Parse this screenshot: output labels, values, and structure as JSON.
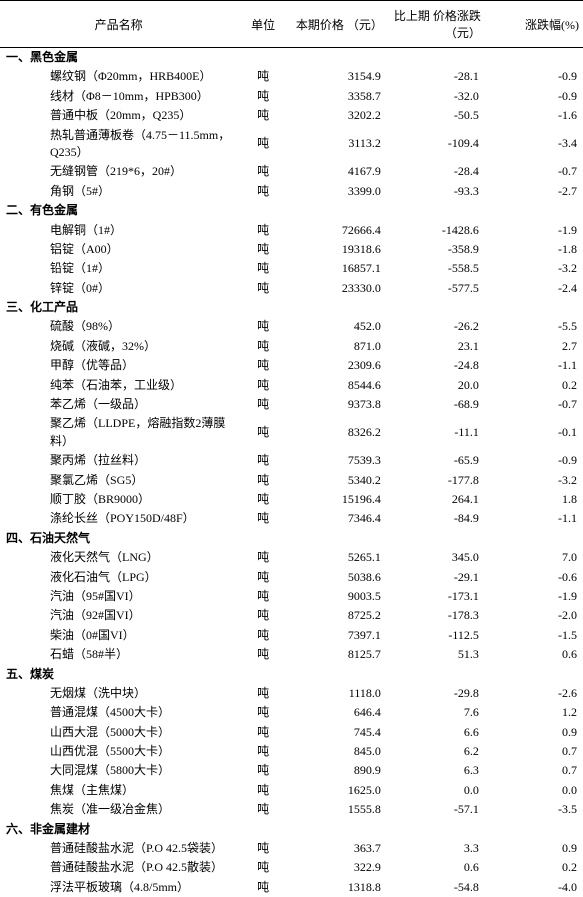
{
  "headers": {
    "name": "产品名称",
    "unit": "单位",
    "price": "本期价格\n（元）",
    "change": "比上期\n价格涨跌\n（元）",
    "pct": "涨跌幅(%)"
  },
  "sections": [
    {
      "title": "一、黑色金属",
      "rows": [
        {
          "name": "螺纹钢（Φ20mm，HRB400E）",
          "unit": "吨",
          "price": "3154.9",
          "change": "-28.1",
          "pct": "-0.9"
        },
        {
          "name": "线材（Φ8－10mm，HPB300）",
          "unit": "吨",
          "price": "3358.7",
          "change": "-32.0",
          "pct": "-0.9"
        },
        {
          "name": "普通中板（20mm，Q235）",
          "unit": "吨",
          "price": "3202.2",
          "change": "-50.5",
          "pct": "-1.6"
        },
        {
          "name": "热轧普通薄板卷（4.75－11.5mm，Q235）",
          "unit": "吨",
          "price": "3113.2",
          "change": "-109.4",
          "pct": "-3.4"
        },
        {
          "name": "无缝钢管（219*6，20#）",
          "unit": "吨",
          "price": "4167.9",
          "change": "-28.4",
          "pct": "-0.7"
        },
        {
          "name": "角钢（5#）",
          "unit": "吨",
          "price": "3399.0",
          "change": "-93.3",
          "pct": "-2.7"
        }
      ]
    },
    {
      "title": "二、有色金属",
      "rows": [
        {
          "name": "电解铜（1#）",
          "unit": "吨",
          "price": "72666.4",
          "change": "-1428.6",
          "pct": "-1.9"
        },
        {
          "name": "铝锭（A00）",
          "unit": "吨",
          "price": "19318.6",
          "change": "-358.9",
          "pct": "-1.8"
        },
        {
          "name": "铅锭（1#）",
          "unit": "吨",
          "price": "16857.1",
          "change": "-558.5",
          "pct": "-3.2"
        },
        {
          "name": "锌锭（0#）",
          "unit": "吨",
          "price": "23330.0",
          "change": "-577.5",
          "pct": "-2.4"
        }
      ]
    },
    {
      "title": "三、化工产品",
      "rows": [
        {
          "name": "硫酸（98%）",
          "unit": "吨",
          "price": "452.0",
          "change": "-26.2",
          "pct": "-5.5"
        },
        {
          "name": "烧碱（液碱，32%）",
          "unit": "吨",
          "price": "871.0",
          "change": "23.1",
          "pct": "2.7"
        },
        {
          "name": "甲醇（优等品）",
          "unit": "吨",
          "price": "2309.6",
          "change": "-24.8",
          "pct": "-1.1"
        },
        {
          "name": "纯苯（石油苯，工业级）",
          "unit": "吨",
          "price": "8544.6",
          "change": "20.0",
          "pct": "0.2"
        },
        {
          "name": "苯乙烯（一级品）",
          "unit": "吨",
          "price": "9373.8",
          "change": "-68.9",
          "pct": "-0.7"
        },
        {
          "name": "聚乙烯（LLDPE，熔融指数2薄膜料）",
          "unit": "吨",
          "price": "8326.2",
          "change": "-11.1",
          "pct": "-0.1"
        },
        {
          "name": "聚丙烯（拉丝料）",
          "unit": "吨",
          "price": "7539.3",
          "change": "-65.9",
          "pct": "-0.9"
        },
        {
          "name": "聚氯乙烯（SG5）",
          "unit": "吨",
          "price": "5340.2",
          "change": "-177.8",
          "pct": "-3.2"
        },
        {
          "name": "顺丁胶（BR9000）",
          "unit": "吨",
          "price": "15196.4",
          "change": "264.1",
          "pct": "1.8"
        },
        {
          "name": "涤纶长丝（POY150D/48F）",
          "unit": "吨",
          "price": "7346.4",
          "change": "-84.9",
          "pct": "-1.1"
        }
      ]
    },
    {
      "title": "四、石油天然气",
      "rows": [
        {
          "name": "液化天然气（LNG）",
          "unit": "吨",
          "price": "5265.1",
          "change": "345.0",
          "pct": "7.0"
        },
        {
          "name": "液化石油气（LPG）",
          "unit": "吨",
          "price": "5038.6",
          "change": "-29.1",
          "pct": "-0.6"
        },
        {
          "name": "汽油（95#国VI）",
          "unit": "吨",
          "price": "9003.5",
          "change": "-173.1",
          "pct": "-1.9"
        },
        {
          "name": "汽油（92#国VI）",
          "unit": "吨",
          "price": "8725.2",
          "change": "-178.3",
          "pct": "-2.0"
        },
        {
          "name": "柴油（0#国VI）",
          "unit": "吨",
          "price": "7397.1",
          "change": "-112.5",
          "pct": "-1.5"
        },
        {
          "name": "石蜡（58#半）",
          "unit": "吨",
          "price": "8125.7",
          "change": "51.3",
          "pct": "0.6"
        }
      ]
    },
    {
      "title": "五、煤炭",
      "rows": [
        {
          "name": "无烟煤（洗中块）",
          "unit": "吨",
          "price": "1118.0",
          "change": "-29.8",
          "pct": "-2.6"
        },
        {
          "name": "普通混煤（4500大卡）",
          "unit": "吨",
          "price": "646.4",
          "change": "7.6",
          "pct": "1.2"
        },
        {
          "name": "山西大混（5000大卡）",
          "unit": "吨",
          "price": "745.4",
          "change": "6.6",
          "pct": "0.9"
        },
        {
          "name": "山西优混（5500大卡）",
          "unit": "吨",
          "price": "845.0",
          "change": "6.2",
          "pct": "0.7"
        },
        {
          "name": "大同混煤（5800大卡）",
          "unit": "吨",
          "price": "890.9",
          "change": "6.3",
          "pct": "0.7"
        },
        {
          "name": "焦煤（主焦煤）",
          "unit": "吨",
          "price": "1625.0",
          "change": "0.0",
          "pct": "0.0"
        },
        {
          "name": "焦炭（准一级冶金焦）",
          "unit": "吨",
          "price": "1555.8",
          "change": "-57.1",
          "pct": "-3.5"
        }
      ]
    },
    {
      "title": "六、非金属建材",
      "rows": [
        {
          "name": "普通硅酸盐水泥（P.O 42.5袋装）",
          "unit": "吨",
          "price": "363.7",
          "change": "3.3",
          "pct": "0.9"
        },
        {
          "name": "普通硅酸盐水泥（P.O 42.5散装）",
          "unit": "吨",
          "price": "322.9",
          "change": "0.6",
          "pct": "0.2"
        },
        {
          "name": "浮法平板玻璃（4.8/5mm）",
          "unit": "吨",
          "price": "1318.8",
          "change": "-54.8",
          "pct": "-4.0"
        }
      ]
    }
  ]
}
